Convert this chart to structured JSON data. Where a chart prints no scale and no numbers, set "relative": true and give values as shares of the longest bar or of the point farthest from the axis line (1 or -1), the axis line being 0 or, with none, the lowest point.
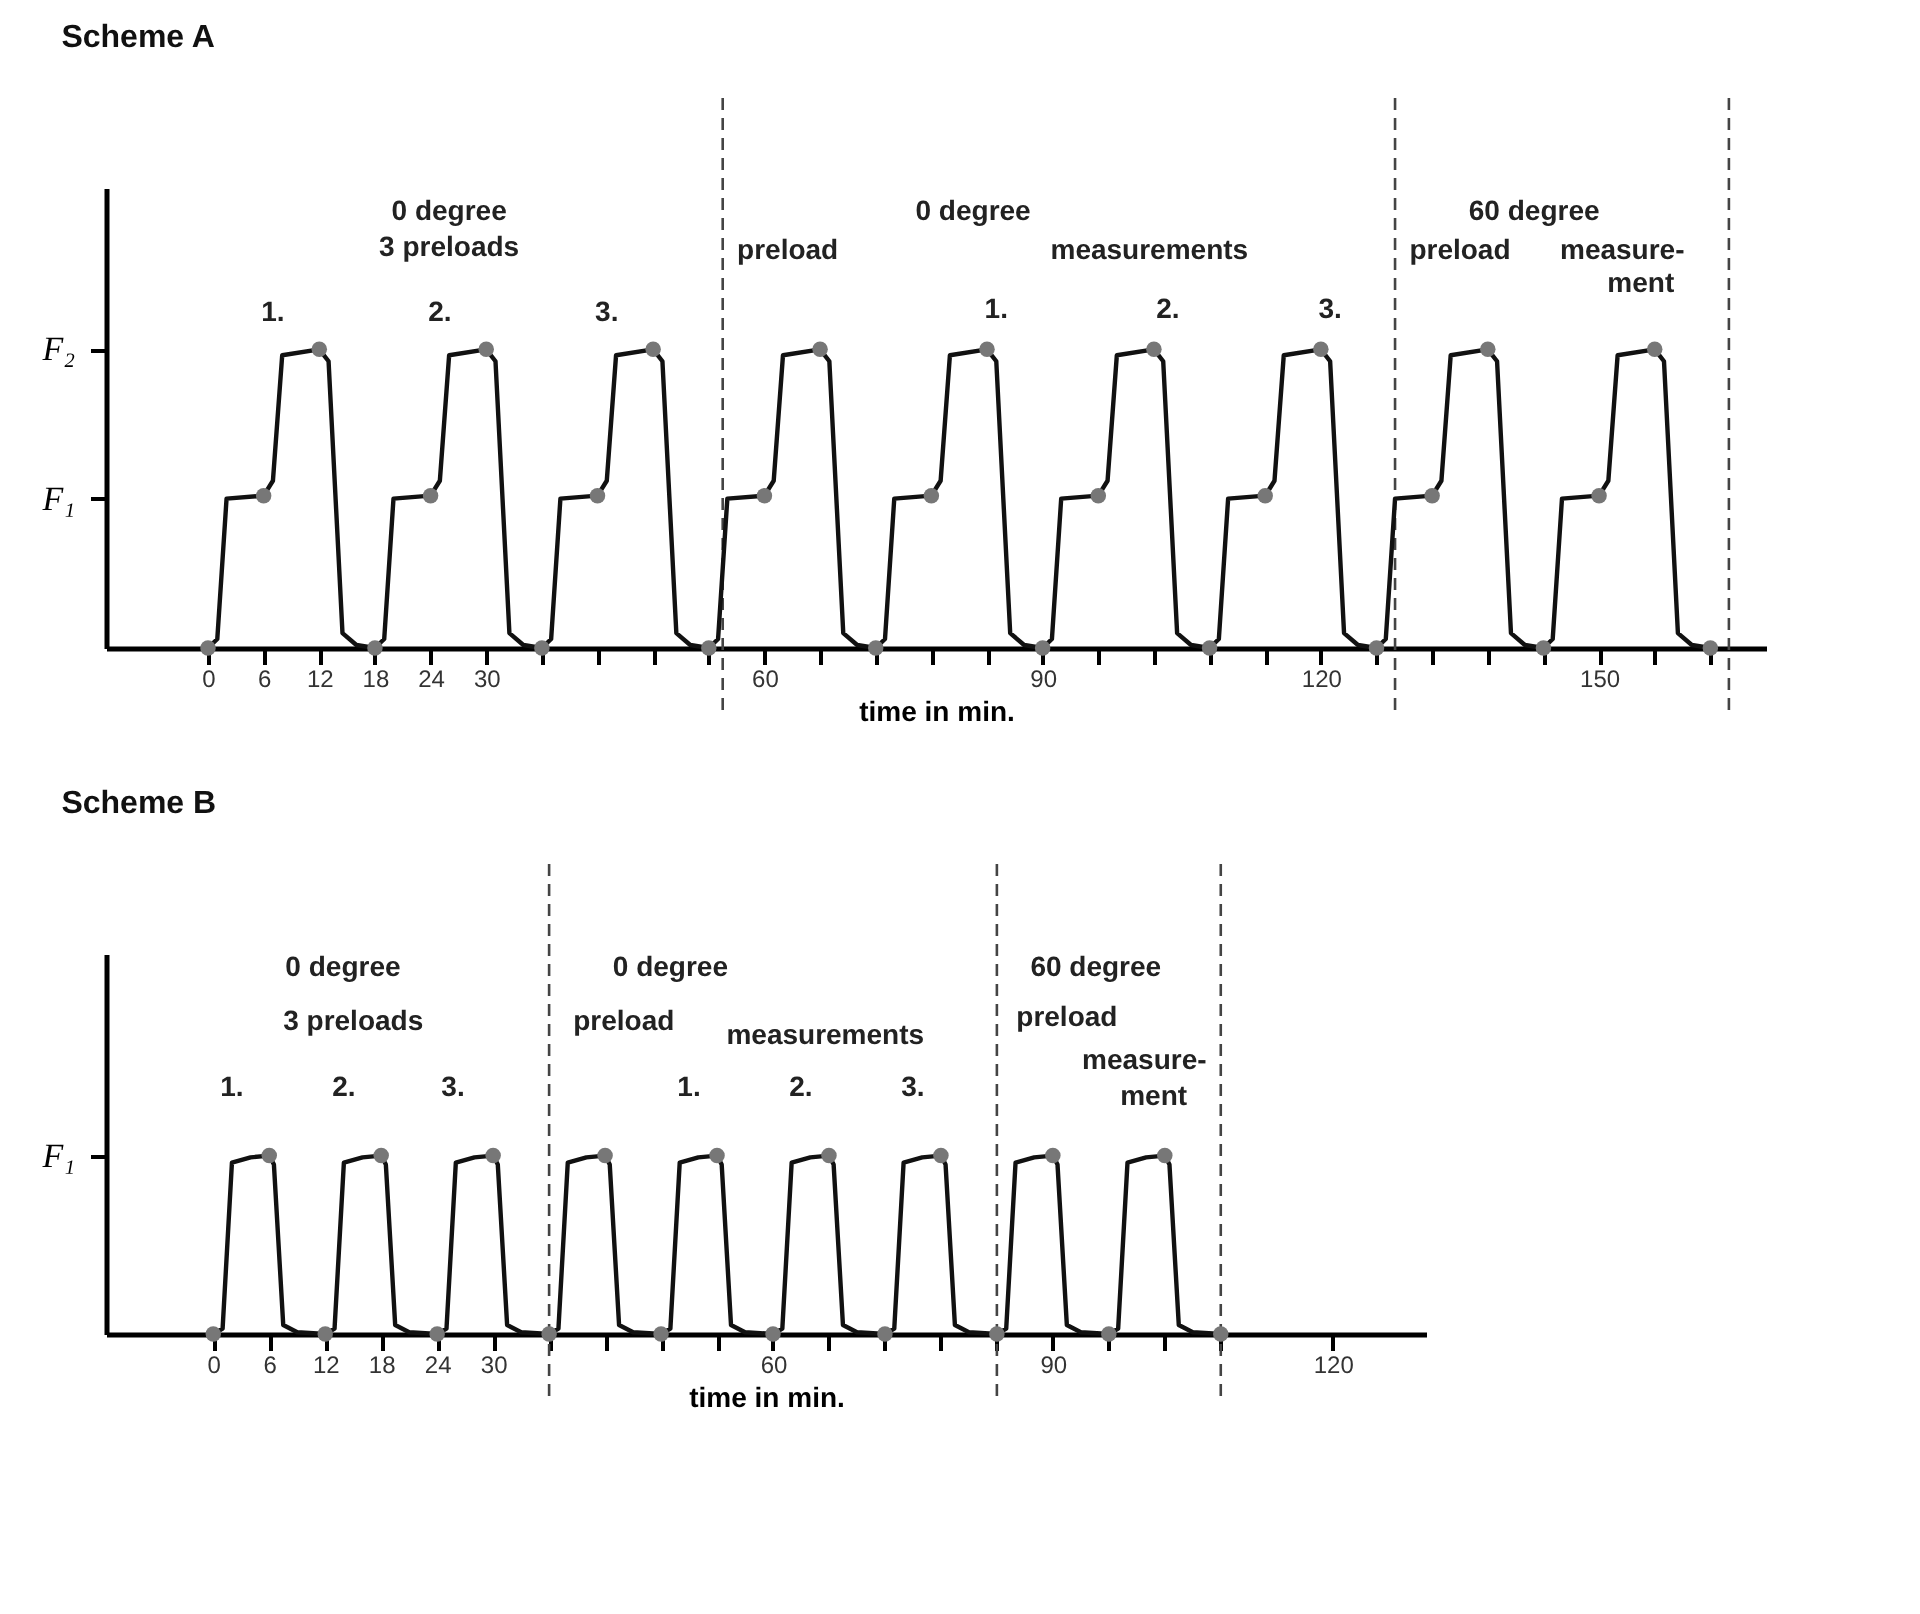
{
  "chart_data": [
    {
      "type": "line",
      "title": "Scheme A",
      "xlabel": "time in min.",
      "relative": true,
      "grid": false,
      "xlim": [
        -11,
        168
      ],
      "xticks": [
        0,
        6,
        12,
        18,
        24,
        30,
        {
          "value": 36,
          "label": null
        },
        {
          "value": 42,
          "label": null
        },
        {
          "value": 48,
          "label": null
        },
        {
          "value": 54,
          "label": null
        },
        60,
        {
          "value": 66,
          "label": null
        },
        {
          "value": 72,
          "label": null
        },
        {
          "value": 78,
          "label": null
        },
        {
          "value": 84,
          "label": null
        },
        90,
        {
          "value": 96,
          "label": null
        },
        {
          "value": 102,
          "label": null
        },
        {
          "value": 108,
          "label": null
        },
        {
          "value": 114,
          "label": null
        },
        120,
        {
          "value": 126,
          "label": null
        },
        {
          "value": 132,
          "label": null
        },
        {
          "value": 138,
          "label": null
        },
        {
          "value": 144,
          "label": null
        },
        150,
        {
          "value": 156,
          "label": null
        },
        {
          "value": 162,
          "label": null
        }
      ],
      "series": [
        {
          "color": "#111111",
          "marker": "none",
          "line_style": "solid",
          "x": [
            0,
            1,
            2,
            6,
            7,
            8,
            12,
            13,
            14.5,
            16,
            18,
            19,
            20,
            24,
            25,
            26,
            30,
            31,
            32.5,
            34,
            36,
            37,
            38,
            42,
            43,
            44,
            48,
            49,
            50.5,
            52,
            54,
            55,
            56,
            60,
            61,
            62,
            66,
            67,
            68.5,
            70,
            72,
            73,
            74,
            78,
            79,
            80,
            84,
            85,
            86.5,
            88,
            90,
            91,
            92,
            96,
            97,
            98,
            102,
            103,
            104.5,
            106,
            108,
            109,
            110,
            114,
            115,
            116,
            120,
            121,
            122.5,
            124,
            126,
            127,
            128,
            132,
            133,
            134,
            138,
            139,
            140.5,
            142,
            144,
            145,
            146,
            150,
            151,
            152,
            156,
            157,
            158.5,
            160,
            162
          ],
          "values": [
            0,
            0.03,
            0.5,
            0.51,
            0.56,
            0.98,
            1,
            0.96,
            0.05,
            0.01,
            0,
            0.03,
            0.5,
            0.51,
            0.56,
            0.98,
            1,
            0.96,
            0.05,
            0.01,
            0,
            0.03,
            0.5,
            0.51,
            0.56,
            0.98,
            1,
            0.96,
            0.05,
            0.01,
            0,
            0.03,
            0.5,
            0.51,
            0.56,
            0.98,
            1,
            0.96,
            0.05,
            0.01,
            0,
            0.03,
            0.5,
            0.51,
            0.56,
            0.98,
            1,
            0.96,
            0.05,
            0.01,
            0,
            0.03,
            0.5,
            0.51,
            0.56,
            0.98,
            1,
            0.96,
            0.05,
            0.01,
            0,
            0.03,
            0.5,
            0.51,
            0.56,
            0.98,
            1,
            0.96,
            0.05,
            0.01,
            0,
            0.03,
            0.5,
            0.51,
            0.56,
            0.98,
            1,
            0.96,
            0.05,
            0.01,
            0,
            0.03,
            0.5,
            0.51,
            0.56,
            0.98,
            1,
            0.96,
            0.05,
            0.01,
            0
          ]
        },
        {
          "type": "scatter",
          "color": "#777777",
          "marker": "circle",
          "x": [
            0,
            6,
            12,
            18,
            24,
            30,
            36,
            42,
            48,
            54,
            60,
            66,
            72,
            78,
            84,
            90,
            96,
            102,
            108,
            114,
            120,
            126,
            132,
            138,
            144,
            150,
            156,
            162
          ],
          "values": [
            0,
            0.51,
            1,
            0,
            0.51,
            1,
            0,
            0.51,
            1,
            0,
            0.51,
            1,
            0,
            0.51,
            1,
            0,
            0.51,
            1,
            0,
            0.51,
            1,
            0,
            0.51,
            1,
            0,
            0.51,
            1,
            0
          ]
        }
      ],
      "ref_lines": [
        {
          "axis": "x",
          "value": 55.5,
          "color": "#444444",
          "line_style": "dashed"
        },
        {
          "axis": "x",
          "value": 128,
          "color": "#444444",
          "line_style": "dashed"
        },
        {
          "axis": "x",
          "value": 164,
          "color": "#444444",
          "line_style": "dashed"
        }
      ],
      "annotations": [
        "F₂",
        "F₁",
        "0 degree",
        "3 preloads",
        "1.",
        "2.",
        "3.",
        "preload",
        "0 degree",
        "measurements",
        "1.",
        "2.",
        "3.",
        "60 degree",
        "preload",
        "measure-",
        "ment"
      ]
    },
    {
      "type": "line",
      "title": "Scheme B",
      "xlabel": "time in min.",
      "relative": true,
      "grid": false,
      "xlim": [
        -11.5,
        130
      ],
      "xticks": [
        0,
        6,
        12,
        18,
        24,
        30,
        {
          "value": 36,
          "label": null
        },
        {
          "value": 42,
          "label": null
        },
        {
          "value": 48,
          "label": null
        },
        {
          "value": 54,
          "label": null
        },
        60,
        {
          "value": 66,
          "label": null
        },
        {
          "value": 72,
          "label": null
        },
        {
          "value": 78,
          "label": null
        },
        {
          "value": 84,
          "label": null
        },
        90,
        {
          "value": 96,
          "label": null
        },
        {
          "value": 102,
          "label": null
        },
        {
          "value": 108,
          "label": null
        },
        120
      ],
      "series": [
        {
          "color": "#111111",
          "marker": "none",
          "line_style": "solid",
          "x": [
            0,
            1,
            2,
            4,
            6,
            6.5,
            7.5,
            9,
            12,
            13,
            14,
            16,
            18,
            18.5,
            19.5,
            21,
            24,
            25,
            26,
            28,
            30,
            30.5,
            31.5,
            33,
            36,
            37,
            38,
            40,
            42,
            42.5,
            43.5,
            45,
            48,
            49,
            50,
            52,
            54,
            54.5,
            55.5,
            57,
            60,
            61,
            62,
            64,
            66,
            66.5,
            67.5,
            69,
            72,
            73,
            74,
            76,
            78,
            78.5,
            79.5,
            81,
            84,
            85,
            86,
            88,
            90,
            90.5,
            91.5,
            93,
            96,
            97,
            98,
            100,
            102,
            102.5,
            103.5,
            105,
            108
          ],
          "values": [
            0,
            0.03,
            0.96,
            0.99,
            1,
            0.95,
            0.05,
            0.01,
            0,
            0.03,
            0.96,
            0.99,
            1,
            0.95,
            0.05,
            0.01,
            0,
            0.03,
            0.96,
            0.99,
            1,
            0.95,
            0.05,
            0.01,
            0,
            0.03,
            0.96,
            0.99,
            1,
            0.95,
            0.05,
            0.01,
            0,
            0.03,
            0.96,
            0.99,
            1,
            0.95,
            0.05,
            0.01,
            0,
            0.03,
            0.96,
            0.99,
            1,
            0.95,
            0.05,
            0.01,
            0,
            0.03,
            0.96,
            0.99,
            1,
            0.95,
            0.05,
            0.01,
            0,
            0.03,
            0.96,
            0.99,
            1,
            0.95,
            0.05,
            0.01,
            0,
            0.03,
            0.96,
            0.99,
            1,
            0.95,
            0.05,
            0.01,
            0
          ]
        },
        {
          "type": "scatter",
          "color": "#777777",
          "marker": "circle",
          "x": [
            0,
            6,
            12,
            18,
            24,
            30,
            36,
            42,
            48,
            54,
            60,
            66,
            72,
            78,
            84,
            90,
            96,
            102,
            108
          ],
          "values": [
            0,
            1,
            0,
            1,
            0,
            1,
            0,
            1,
            0,
            1,
            0,
            1,
            0,
            1,
            0,
            1,
            0,
            1,
            0
          ]
        }
      ],
      "ref_lines": [
        {
          "axis": "x",
          "value": 36,
          "color": "#444444",
          "line_style": "dashed"
        },
        {
          "axis": "x",
          "value": 84,
          "color": "#444444",
          "line_style": "dashed"
        },
        {
          "axis": "x",
          "value": 108,
          "color": "#444444",
          "line_style": "dashed"
        }
      ],
      "annotations": [
        "F₁",
        "0 degree",
        "3 preloads",
        "1.",
        "2.",
        "3.",
        "0 degree",
        "preload",
        "measurements",
        "1.",
        "2.",
        "3.",
        "60 degree",
        "preload",
        "measure-",
        "ment"
      ]
    }
  ]
}
